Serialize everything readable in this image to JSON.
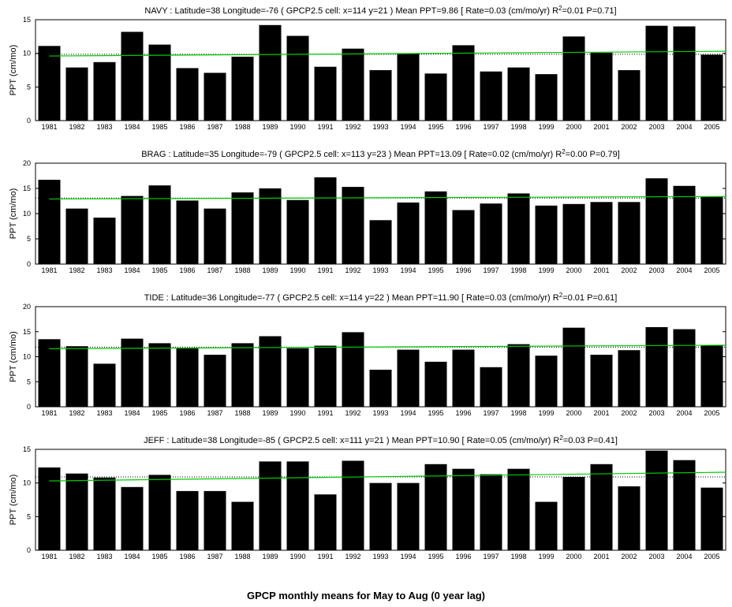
{
  "figure": {
    "suptitle": "GPCP monthly means for May to Aug (0 year lag)"
  },
  "colors": {
    "bar": "#000000",
    "trend_line": "#00cc00",
    "mean_line": "#000000",
    "axes": "#000000",
    "background": "#ffffff"
  },
  "chart_data": [
    {
      "type": "bar",
      "title_prefix": "NAVY : Latitude=38 Longitude=-76 ( GPCP2.5 cell: x=114 y=21 ) Mean PPT=9.86  [ Rate=0.03 (cm/mo/yr) R",
      "title_sup": "2",
      "title_suffix": "=0.01 P=0.71]",
      "ylabel": "PPT (cm/mo)",
      "xlabel": "",
      "ylim": [
        0,
        15
      ],
      "yticks": [
        0,
        5,
        10,
        15
      ],
      "categories": [
        "1981",
        "1982",
        "1983",
        "1984",
        "1985",
        "1986",
        "1987",
        "1988",
        "1989",
        "1990",
        "1991",
        "1992",
        "1993",
        "1994",
        "1995",
        "1996",
        "1997",
        "1998",
        "1999",
        "2000",
        "2001",
        "2002",
        "2003",
        "2004",
        "2005"
      ],
      "values": [
        11.1,
        7.9,
        8.7,
        13.2,
        11.3,
        7.8,
        7.1,
        9.5,
        14.2,
        12.6,
        8.0,
        10.7,
        7.5,
        10.0,
        7.0,
        11.2,
        7.3,
        7.9,
        6.9,
        12.5,
        10.1,
        7.5,
        14.1,
        14.0,
        9.8
      ],
      "mean": 9.86,
      "trend": [
        9.6,
        10.3
      ],
      "legend": "none",
      "grid": false
    },
    {
      "type": "bar",
      "title_prefix": "BRAG : Latitude=35 Longitude=-79 ( GPCP2.5 cell: x=113 y=23 ) Mean PPT=13.09  [ Rate=0.02 (cm/mo/yr) R",
      "title_sup": "2",
      "title_suffix": "=0.00 P=0.79]",
      "ylabel": "PPT (cm/mo)",
      "xlabel": "",
      "ylim": [
        0,
        20
      ],
      "yticks": [
        0,
        5,
        10,
        15,
        20
      ],
      "categories": [
        "1981",
        "1982",
        "1983",
        "1984",
        "1985",
        "1986",
        "1987",
        "1988",
        "1989",
        "1990",
        "1991",
        "1992",
        "1993",
        "1994",
        "1995",
        "1996",
        "1997",
        "1998",
        "1999",
        "2000",
        "2001",
        "2002",
        "2003",
        "2004",
        "2005"
      ],
      "values": [
        16.7,
        11.0,
        9.2,
        13.5,
        15.6,
        12.6,
        11.0,
        14.2,
        15.0,
        12.7,
        17.2,
        15.3,
        8.7,
        12.2,
        14.4,
        10.7,
        12.0,
        14.0,
        11.6,
        11.9,
        12.3,
        12.3,
        17.0,
        15.5,
        13.4
      ],
      "mean": 13.09,
      "trend": [
        12.9,
        13.4
      ],
      "legend": "none",
      "grid": false
    },
    {
      "type": "bar",
      "title_prefix": "TIDE : Latitude=36 Longitude=-77 ( GPCP2.5 cell: x=114 y=22 ) Mean PPT=11.90  [ Rate=0.03 (cm/mo/yr) R",
      "title_sup": "2",
      "title_suffix": "=0.01 P=0.61]",
      "ylabel": "PPT (cm/mo)",
      "xlabel": "",
      "ylim": [
        0,
        20
      ],
      "yticks": [
        0,
        5,
        10,
        15,
        20
      ],
      "categories": [
        "1981",
        "1982",
        "1983",
        "1984",
        "1985",
        "1986",
        "1987",
        "1988",
        "1989",
        "1990",
        "1991",
        "1992",
        "1993",
        "1994",
        "1995",
        "1996",
        "1997",
        "1998",
        "1999",
        "2000",
        "2001",
        "2002",
        "2003",
        "2004",
        "2005"
      ],
      "values": [
        13.5,
        12.1,
        8.6,
        13.6,
        12.7,
        11.7,
        10.4,
        12.7,
        14.1,
        11.7,
        12.2,
        14.9,
        7.4,
        11.4,
        9.0,
        11.4,
        7.9,
        12.5,
        10.2,
        15.8,
        10.4,
        11.3,
        15.9,
        15.5,
        12.2
      ],
      "mean": 11.9,
      "trend": [
        11.6,
        12.3
      ],
      "legend": "none",
      "grid": false
    },
    {
      "type": "bar",
      "title_prefix": "JEFF : Latitude=38 Longitude=-85 ( GPCP2.5 cell: x=111 y=21 ) Mean PPT=10.90  [ Rate=0.05 (cm/mo/yr) R",
      "title_sup": "2",
      "title_suffix": "=0.03 P=0.41]",
      "ylabel": "PPT (cm/mo)",
      "xlabel": "",
      "ylim": [
        0,
        15
      ],
      "yticks": [
        0,
        5,
        10,
        15
      ],
      "categories": [
        "1981",
        "1982",
        "1983",
        "1984",
        "1985",
        "1986",
        "1987",
        "1988",
        "1989",
        "1990",
        "1991",
        "1992",
        "1993",
        "1994",
        "1995",
        "1996",
        "1997",
        "1998",
        "1999",
        "2000",
        "2001",
        "2002",
        "2003",
        "2004",
        "2005"
      ],
      "values": [
        12.3,
        11.4,
        10.8,
        9.4,
        11.2,
        8.8,
        8.8,
        7.2,
        13.2,
        13.2,
        8.3,
        13.3,
        10.0,
        10.0,
        12.8,
        12.1,
        11.3,
        12.1,
        7.2,
        10.9,
        12.8,
        9.5,
        14.8,
        13.4,
        9.3
      ],
      "mean": 10.9,
      "trend": [
        10.3,
        11.6
      ],
      "legend": "none",
      "grid": false
    }
  ]
}
